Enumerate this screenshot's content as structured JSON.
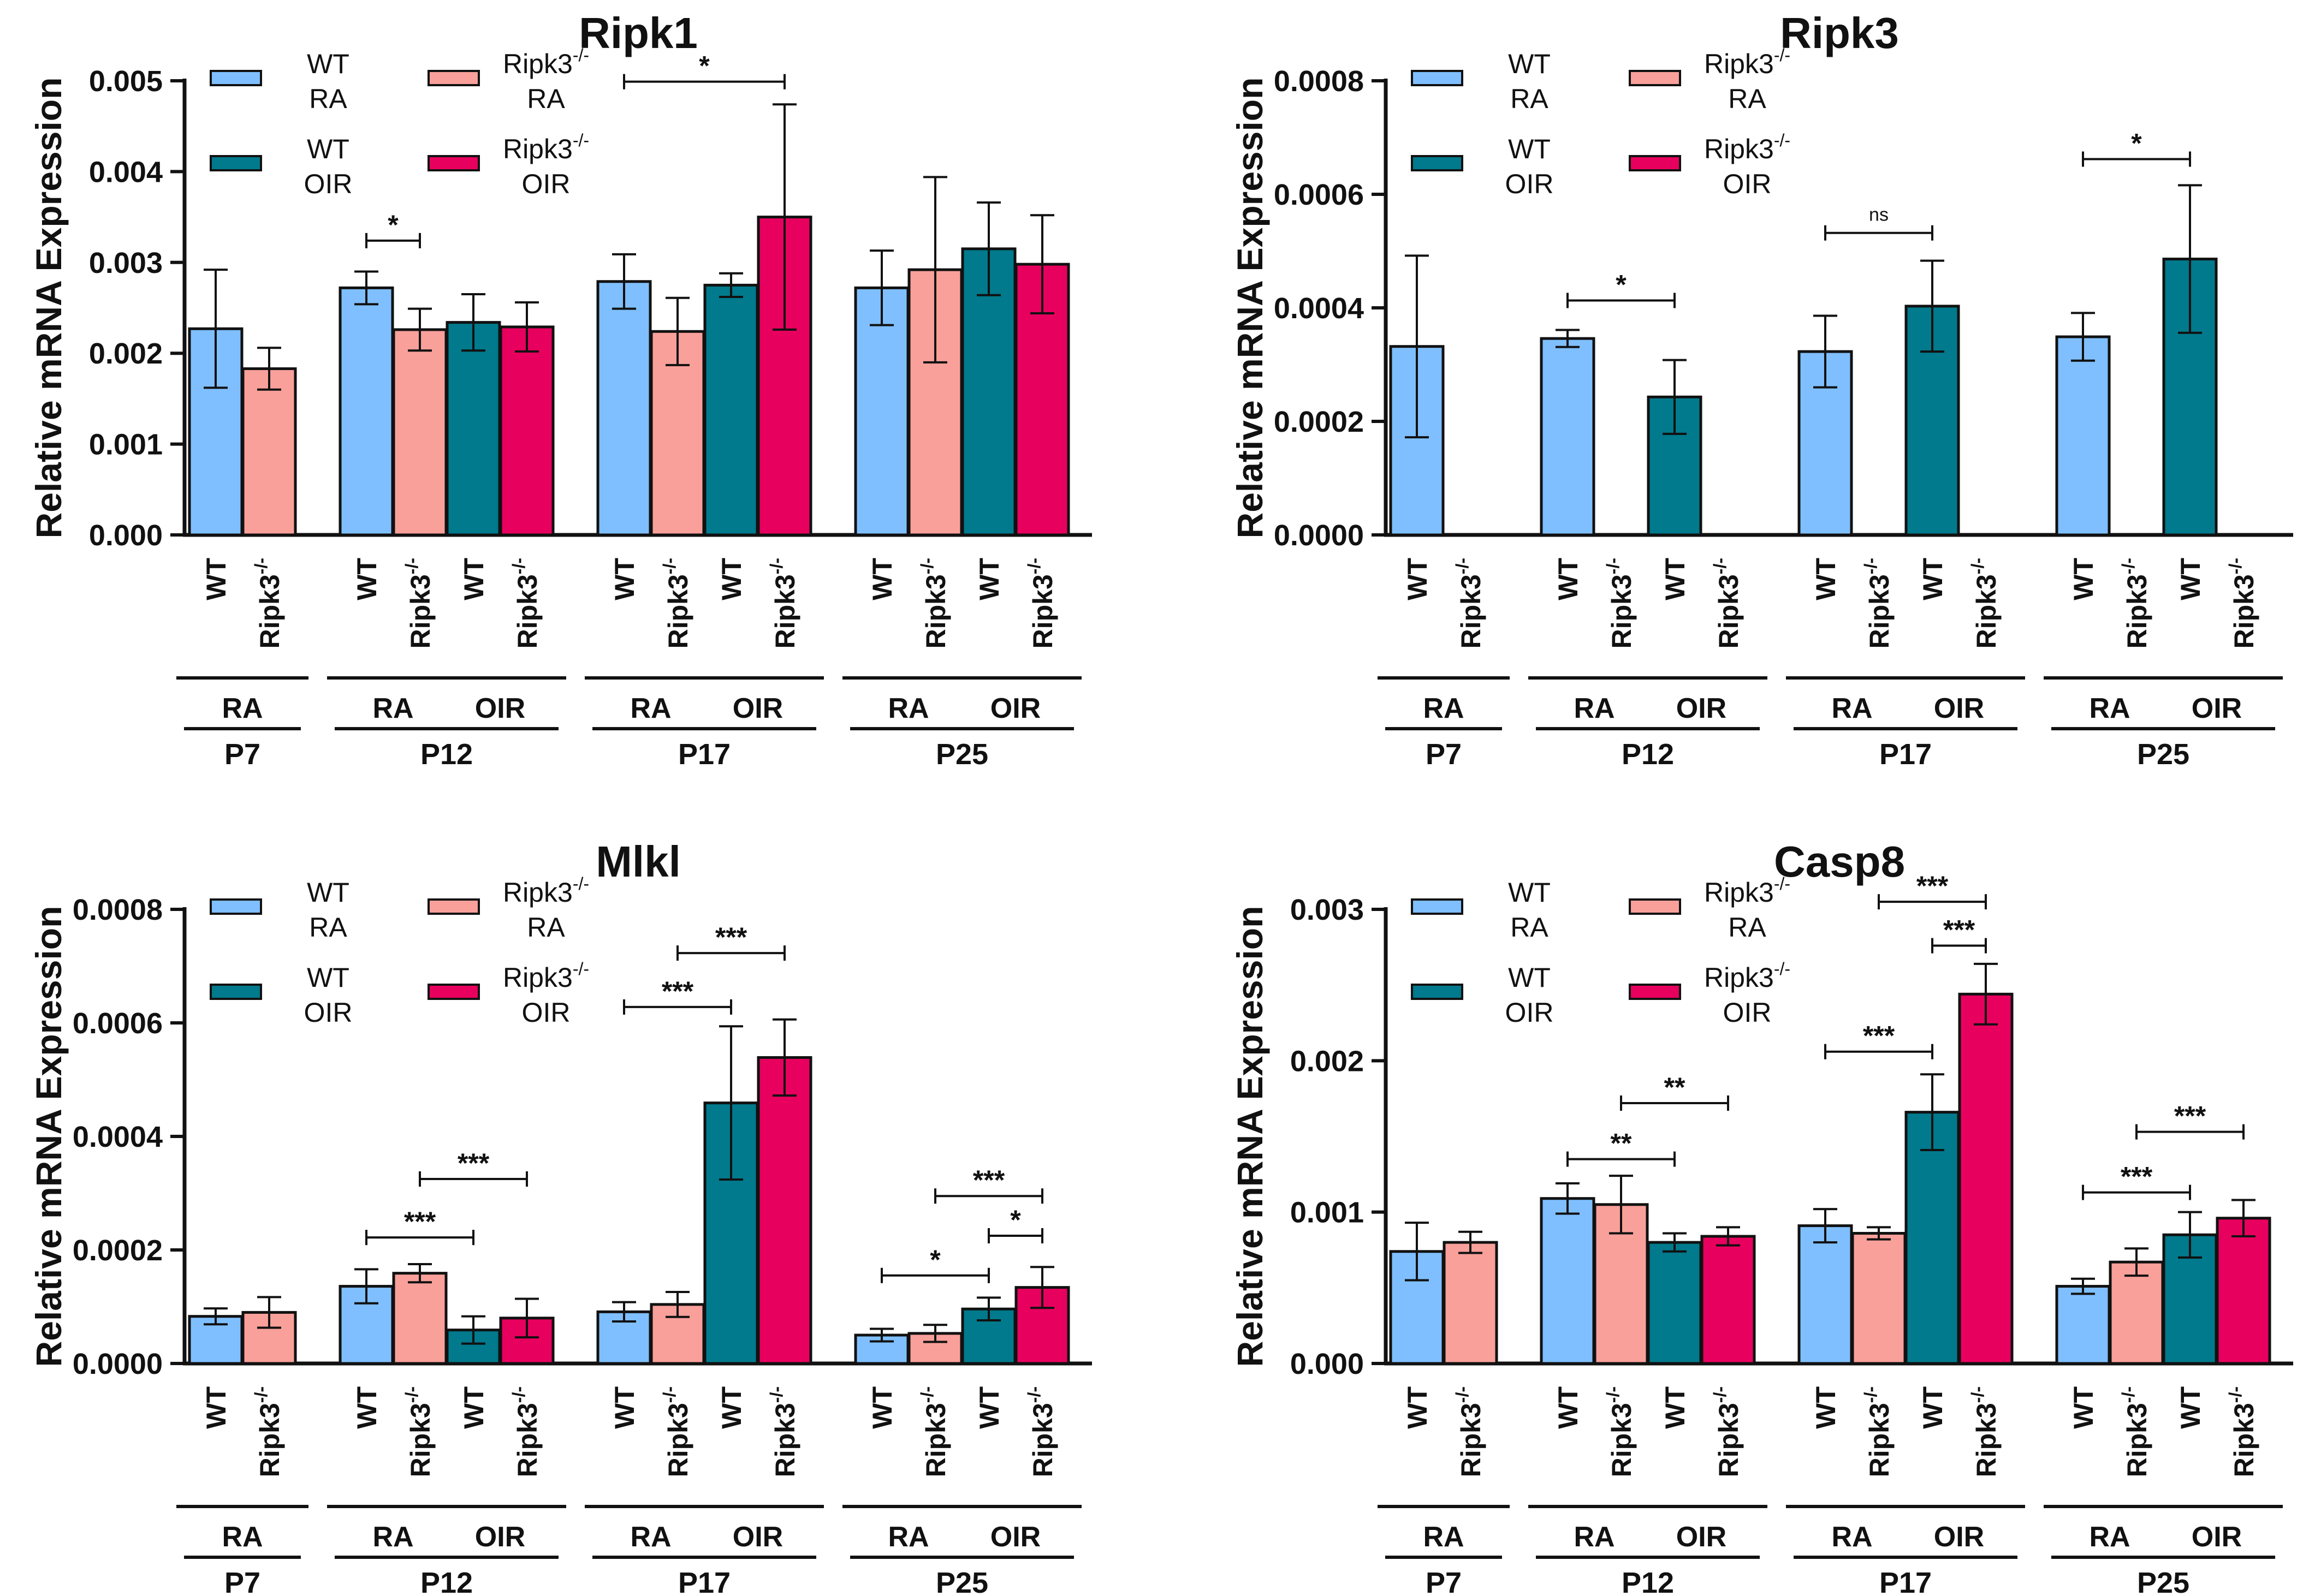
{
  "labels": {
    "ylabel": "Relative mRNA Expression",
    "genotype_wt": "WT",
    "genotype_ko": "Ripk3",
    "ko_superscript": "-/-",
    "cond_ra": "RA",
    "cond_oir": "OIR"
  },
  "legend": [
    {
      "line1": "WT",
      "line2": "RA",
      "color": "#7fbfff"
    },
    {
      "line1": "Ripk3",
      "line2": "RA",
      "color": "#f9a09a",
      "superscript": "-/-"
    },
    {
      "line1": "WT",
      "line2": "OIR",
      "color": "#007a8c"
    },
    {
      "line1": "Ripk3",
      "line2": "OIR",
      "color": "#e8005e",
      "superscript": "-/-"
    }
  ],
  "colors": {
    "wt_ra": "#7fbfff",
    "ko_ra": "#f9a09a",
    "wt_oir": "#007a8c",
    "ko_oir": "#e8005e"
  },
  "chart_data": [
    {
      "type": "bar",
      "title": "Ripk1",
      "ylabel": "Relative mRNA Expression",
      "ylim": [
        0,
        0.005
      ],
      "yticks": [
        "0.000",
        "0.001",
        "0.002",
        "0.003",
        "0.004",
        "0.005"
      ],
      "groups": [
        {
          "age": "P7",
          "bars": [
            {
              "genotype": "WT",
              "condition": "RA",
              "value": 0.00227,
              "err": 0.00065
            },
            {
              "genotype": "Ripk3",
              "condition": "RA",
              "value": 0.00183,
              "err": 0.00023
            }
          ]
        },
        {
          "age": "P12",
          "bars": [
            {
              "genotype": "WT",
              "condition": "RA",
              "value": 0.00272,
              "err": 0.00018
            },
            {
              "genotype": "Ripk3",
              "condition": "RA",
              "value": 0.00226,
              "err": 0.00023
            },
            {
              "genotype": "WT",
              "condition": "OIR",
              "value": 0.00234,
              "err": 0.00031
            },
            {
              "genotype": "Ripk3",
              "condition": "OIR",
              "value": 0.00229,
              "err": 0.00027
            }
          ]
        },
        {
          "age": "P17",
          "bars": [
            {
              "genotype": "WT",
              "condition": "RA",
              "value": 0.00279,
              "err": 0.0003
            },
            {
              "genotype": "Ripk3",
              "condition": "RA",
              "value": 0.00224,
              "err": 0.00037
            },
            {
              "genotype": "WT",
              "condition": "OIR",
              "value": 0.00275,
              "err": 0.00013
            },
            {
              "genotype": "Ripk3",
              "condition": "OIR",
              "value": 0.0035,
              "err": 0.00124
            }
          ]
        },
        {
          "age": "P25",
          "bars": [
            {
              "genotype": "WT",
              "condition": "RA",
              "value": 0.00272,
              "err": 0.00041
            },
            {
              "genotype": "Ripk3",
              "condition": "RA",
              "value": 0.00292,
              "err": 0.00102
            },
            {
              "genotype": "WT",
              "condition": "OIR",
              "value": 0.00315,
              "err": 0.00051
            },
            {
              "genotype": "Ripk3",
              "condition": "OIR",
              "value": 0.00298,
              "err": 0.00054
            }
          ]
        }
      ],
      "significance": [
        {
          "from": [
            1,
            0
          ],
          "to": [
            1,
            1
          ],
          "label": "*",
          "y": 0.00324
        },
        {
          "from": [
            2,
            0
          ],
          "to": [
            2,
            3
          ],
          "label": "*",
          "y": 0.00499
        }
      ]
    },
    {
      "type": "bar",
      "title": "Ripk3",
      "ylabel": "Relative mRNA Expression",
      "ylim": [
        0,
        0.0008
      ],
      "yticks": [
        "0.0000",
        "0.0002",
        "0.0004",
        "0.0006",
        "0.0008"
      ],
      "groups": [
        {
          "age": "P7",
          "bars": [
            {
              "genotype": "WT",
              "condition": "RA",
              "value": 0.000332,
              "err": 0.00016
            },
            {
              "genotype": "Ripk3",
              "condition": "RA",
              "value": 0,
              "err": 0
            }
          ]
        },
        {
          "age": "P12",
          "bars": [
            {
              "genotype": "WT",
              "condition": "RA",
              "value": 0.000346,
              "err": 1.5e-05
            },
            {
              "genotype": "Ripk3",
              "condition": "RA",
              "value": 0,
              "err": 0
            },
            {
              "genotype": "WT",
              "condition": "OIR",
              "value": 0.000243,
              "err": 6.5e-05
            },
            {
              "genotype": "Ripk3",
              "condition": "OIR",
              "value": 0,
              "err": 0
            }
          ]
        },
        {
          "age": "P17",
          "bars": [
            {
              "genotype": "WT",
              "condition": "RA",
              "value": 0.000323,
              "err": 6.3e-05
            },
            {
              "genotype": "Ripk3",
              "condition": "RA",
              "value": 0,
              "err": 0
            },
            {
              "genotype": "WT",
              "condition": "OIR",
              "value": 0.000403,
              "err": 8e-05
            },
            {
              "genotype": "Ripk3",
              "condition": "OIR",
              "value": 0,
              "err": 0
            }
          ]
        },
        {
          "age": "P25",
          "bars": [
            {
              "genotype": "WT",
              "condition": "RA",
              "value": 0.000349,
              "err": 4.2e-05
            },
            {
              "genotype": "Ripk3",
              "condition": "RA",
              "value": 0,
              "err": 0
            },
            {
              "genotype": "WT",
              "condition": "OIR",
              "value": 0.000486,
              "err": 0.00013
            },
            {
              "genotype": "Ripk3",
              "condition": "OIR",
              "value": 0,
              "err": 0
            }
          ]
        }
      ],
      "significance": [
        {
          "from": [
            1,
            0
          ],
          "to": [
            1,
            2
          ],
          "label": "*",
          "y": 0.000413
        },
        {
          "from": [
            2,
            0
          ],
          "to": [
            2,
            2
          ],
          "label": "ns",
          "y": 0.000532
        },
        {
          "from": [
            3,
            0
          ],
          "to": [
            3,
            2
          ],
          "label": "*",
          "y": 0.000662
        }
      ]
    },
    {
      "type": "bar",
      "title": "Mlkl",
      "ylabel": "Relative mRNA Expression",
      "ylim": [
        0,
        0.0008
      ],
      "yticks": [
        "0.0000",
        "0.0002",
        "0.0004",
        "0.0006",
        "0.0008"
      ],
      "groups": [
        {
          "age": "P7",
          "bars": [
            {
              "genotype": "WT",
              "condition": "RA",
              "value": 8.3e-05,
              "err": 1.4e-05
            },
            {
              "genotype": "Ripk3",
              "condition": "RA",
              "value": 9e-05,
              "err": 2.7e-05
            }
          ]
        },
        {
          "age": "P12",
          "bars": [
            {
              "genotype": "WT",
              "condition": "RA",
              "value": 0.000136,
              "err": 3e-05
            },
            {
              "genotype": "Ripk3",
              "condition": "RA",
              "value": 0.000159,
              "err": 1.6e-05
            },
            {
              "genotype": "WT",
              "condition": "OIR",
              "value": 5.9e-05,
              "err": 2.4e-05
            },
            {
              "genotype": "Ripk3",
              "condition": "OIR",
              "value": 8e-05,
              "err": 3.4e-05
            }
          ]
        },
        {
          "age": "P17",
          "bars": [
            {
              "genotype": "WT",
              "condition": "RA",
              "value": 9.1e-05,
              "err": 1.7e-05
            },
            {
              "genotype": "Ripk3",
              "condition": "RA",
              "value": 0.000104,
              "err": 2.2e-05
            },
            {
              "genotype": "WT",
              "condition": "OIR",
              "value": 0.000459,
              "err": 0.000135
            },
            {
              "genotype": "Ripk3",
              "condition": "OIR",
              "value": 0.000539,
              "err": 6.7e-05
            }
          ]
        },
        {
          "age": "P25",
          "bars": [
            {
              "genotype": "WT",
              "condition": "RA",
              "value": 5e-05,
              "err": 1.1e-05
            },
            {
              "genotype": "Ripk3",
              "condition": "RA",
              "value": 5.3e-05,
              "err": 1.5e-05
            },
            {
              "genotype": "WT",
              "condition": "OIR",
              "value": 9.6e-05,
              "err": 2e-05
            },
            {
              "genotype": "Ripk3",
              "condition": "OIR",
              "value": 0.000134,
              "err": 3.6e-05
            }
          ]
        }
      ],
      "significance": [
        {
          "from": [
            1,
            0
          ],
          "to": [
            1,
            2
          ],
          "label": "***",
          "y": 0.000222
        },
        {
          "from": [
            1,
            1
          ],
          "to": [
            1,
            3
          ],
          "label": "***",
          "y": 0.000325
        },
        {
          "from": [
            2,
            0
          ],
          "to": [
            2,
            2
          ],
          "label": "***",
          "y": 0.000628
        },
        {
          "from": [
            2,
            1
          ],
          "to": [
            2,
            3
          ],
          "label": "***",
          "y": 0.000723
        },
        {
          "from": [
            3,
            0
          ],
          "to": [
            3,
            2
          ],
          "label": "*",
          "y": 0.000155
        },
        {
          "from": [
            3,
            2
          ],
          "to": [
            3,
            3
          ],
          "label": "*",
          "y": 0.000225
        },
        {
          "from": [
            3,
            1
          ],
          "to": [
            3,
            3
          ],
          "label": "***",
          "y": 0.000295
        }
      ]
    },
    {
      "type": "bar",
      "title": "Casp8",
      "ylabel": "Relative mRNA Expression",
      "ylim": [
        0,
        0.003
      ],
      "yticks": [
        "0.000",
        "0.001",
        "0.002",
        "0.003"
      ],
      "groups": [
        {
          "age": "P7",
          "bars": [
            {
              "genotype": "WT",
              "condition": "RA",
              "value": 0.00074,
              "err": 0.00019
            },
            {
              "genotype": "Ripk3",
              "condition": "RA",
              "value": 0.0008,
              "err": 7e-05
            }
          ]
        },
        {
          "age": "P12",
          "bars": [
            {
              "genotype": "WT",
              "condition": "RA",
              "value": 0.00109,
              "err": 0.0001
            },
            {
              "genotype": "Ripk3",
              "condition": "RA",
              "value": 0.00105,
              "err": 0.00019
            },
            {
              "genotype": "WT",
              "condition": "OIR",
              "value": 0.0008,
              "err": 6e-05
            },
            {
              "genotype": "Ripk3",
              "condition": "OIR",
              "value": 0.00084,
              "err": 6e-05
            }
          ]
        },
        {
          "age": "P17",
          "bars": [
            {
              "genotype": "WT",
              "condition": "RA",
              "value": 0.00091,
              "err": 0.00011
            },
            {
              "genotype": "Ripk3",
              "condition": "RA",
              "value": 0.00086,
              "err": 4e-05
            },
            {
              "genotype": "WT",
              "condition": "OIR",
              "value": 0.00166,
              "err": 0.00025
            },
            {
              "genotype": "Ripk3",
              "condition": "OIR",
              "value": 0.00244,
              "err": 0.0002
            }
          ]
        },
        {
          "age": "P25",
          "bars": [
            {
              "genotype": "WT",
              "condition": "RA",
              "value": 0.00051,
              "err": 5e-05
            },
            {
              "genotype": "Ripk3",
              "condition": "RA",
              "value": 0.00067,
              "err": 9e-05
            },
            {
              "genotype": "WT",
              "condition": "OIR",
              "value": 0.00085,
              "err": 0.00015
            },
            {
              "genotype": "Ripk3",
              "condition": "OIR",
              "value": 0.00096,
              "err": 0.00012
            }
          ]
        }
      ],
      "significance": [
        {
          "from": [
            1,
            0
          ],
          "to": [
            1,
            2
          ],
          "label": "**",
          "y": 0.00135
        },
        {
          "from": [
            1,
            1
          ],
          "to": [
            1,
            3
          ],
          "label": "**",
          "y": 0.00172
        },
        {
          "from": [
            2,
            0
          ],
          "to": [
            2,
            2
          ],
          "label": "***",
          "y": 0.00206
        },
        {
          "from": [
            2,
            2
          ],
          "to": [
            2,
            3
          ],
          "label": "***",
          "y": 0.00276
        },
        {
          "from": [
            2,
            1
          ],
          "to": [
            2,
            3
          ],
          "label": "***",
          "y": 0.00305
        },
        {
          "from": [
            3,
            0
          ],
          "to": [
            3,
            2
          ],
          "label": "***",
          "y": 0.00113
        },
        {
          "from": [
            3,
            1
          ],
          "to": [
            3,
            3
          ],
          "label": "***",
          "y": 0.00153
        }
      ]
    }
  ]
}
